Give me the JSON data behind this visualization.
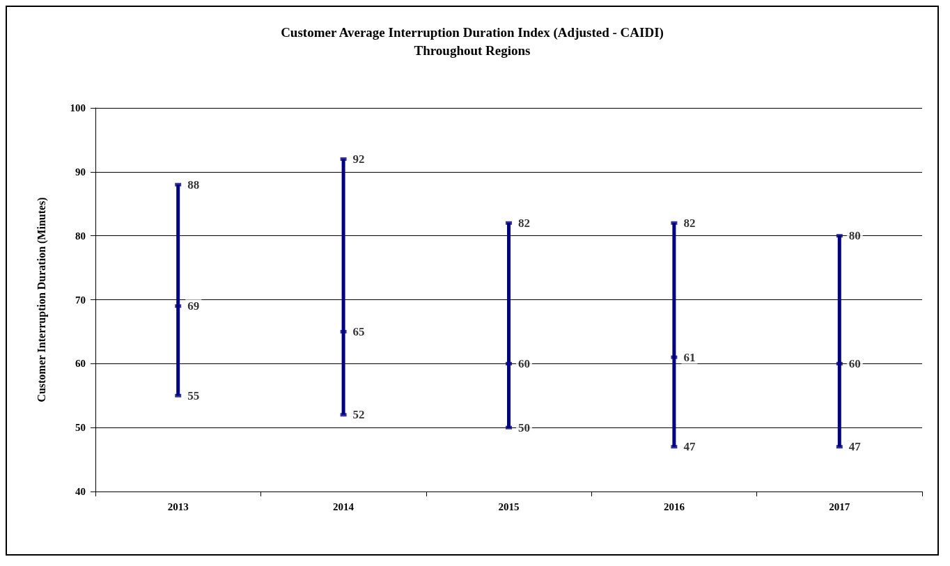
{
  "chart_data": {
    "type": "bar",
    "title": "Customer Average Interruption Duration Index (Adjusted - CAIDI)\nThroughout Regions",
    "ylabel": "Customer Interruption Duration (Minutes)",
    "categories": [
      "2013",
      "2014",
      "2015",
      "2016",
      "2017"
    ],
    "series": [
      {
        "color": "#000080",
        "base": [
          55,
          52,
          50,
          47,
          47
        ],
        "values": [
          33,
          40,
          32,
          35,
          33
        ]
      },
      {
        "type": "scatter",
        "color": "#000080",
        "values": [
          88,
          92,
          82,
          82,
          80
        ],
        "value_labels": [
          "88",
          "92",
          "82",
          "82",
          "80"
        ]
      },
      {
        "type": "scatter",
        "color": "#000080",
        "values": [
          69,
          65,
          60,
          61,
          60
        ],
        "value_labels": [
          "69",
          "65",
          "60",
          "61",
          "60"
        ]
      },
      {
        "type": "scatter",
        "color": "#000080",
        "values": [
          55,
          52,
          50,
          47,
          47
        ],
        "value_labels": [
          "55",
          "52",
          "50",
          "47",
          "47"
        ]
      }
    ],
    "ylim": [
      40,
      100
    ],
    "yticks": [
      40,
      50,
      60,
      70,
      80,
      90,
      100
    ],
    "grid": "y"
  }
}
